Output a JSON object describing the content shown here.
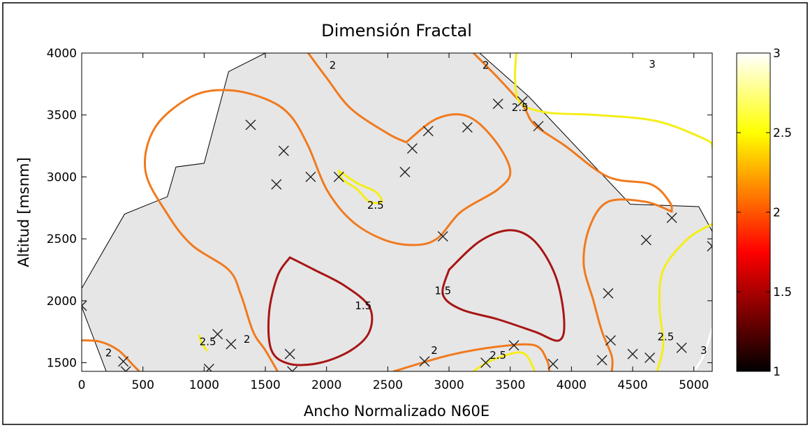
{
  "chart_data": {
    "type": "contour",
    "title": "Dimensión Fractal",
    "xlabel": "Ancho Normalizado N60E",
    "ylabel": "Altitud [msnm]",
    "xlim": [
      0,
      5150
    ],
    "ylim": [
      1430,
      4000
    ],
    "xticks": [
      0,
      500,
      1000,
      1500,
      2000,
      2500,
      3000,
      3500,
      4000,
      4500,
      5000
    ],
    "yticks": [
      1500,
      2000,
      2500,
      3000,
      3500,
      4000
    ],
    "colorbar": {
      "min": 1,
      "max": 3,
      "ticks": [
        1,
        1.5,
        2,
        2.5,
        3
      ],
      "colormap": "hot",
      "position": "right"
    },
    "contour_levels": [
      1.5,
      2,
      2.5,
      3
    ],
    "level_colors": {
      "1.5": "#a81515",
      "2": "#f07a1e",
      "2.5": "#f5ee18",
      "3": "#ffffff"
    },
    "domain_fill": "#e6e6e6",
    "domain_boundary": [
      [
        0,
        2100
      ],
      [
        350,
        2700
      ],
      [
        700,
        2840
      ],
      [
        770,
        3080
      ],
      [
        1000,
        3110
      ],
      [
        1200,
        3850
      ],
      [
        1500,
        4000
      ],
      [
        3250,
        4000
      ],
      [
        3650,
        3650
      ],
      [
        4480,
        2780
      ],
      [
        5040,
        2760
      ],
      [
        5150,
        2560
      ],
      [
        5150,
        1430
      ],
      [
        200,
        1430
      ],
      [
        0,
        1950
      ]
    ],
    "contour_labels": [
      {
        "text": "2",
        "x": 2050,
        "y": 3900
      },
      {
        "text": "2",
        "x": 3300,
        "y": 3900
      },
      {
        "text": "3",
        "x": 4660,
        "y": 3910
      },
      {
        "text": "2.5",
        "x": 3580,
        "y": 3560
      },
      {
        "text": "2.5",
        "x": 2400,
        "y": 2770
      },
      {
        "text": "1.5",
        "x": 2300,
        "y": 1960
      },
      {
        "text": "1.5",
        "x": 2950,
        "y": 2080
      },
      {
        "text": "2",
        "x": 1350,
        "y": 1690
      },
      {
        "text": "2.5",
        "x": 1030,
        "y": 1670
      },
      {
        "text": "2",
        "x": 220,
        "y": 1580
      },
      {
        "text": "2",
        "x": 2880,
        "y": 1600
      },
      {
        "text": "2.5",
        "x": 3400,
        "y": 1560
      },
      {
        "text": "2.5",
        "x": 4770,
        "y": 1710
      },
      {
        "text": "3",
        "x": 5080,
        "y": 1600
      }
    ],
    "contours": [
      {
        "level": 2,
        "points": [
          [
            1850,
            4000
          ],
          [
            2000,
            3800
          ],
          [
            2200,
            3550
          ],
          [
            2500,
            3350
          ],
          [
            2650,
            3280
          ]
        ]
      },
      {
        "level": 2,
        "points": [
          [
            3200,
            4000
          ],
          [
            3400,
            3800
          ],
          [
            3600,
            3580
          ],
          [
            3700,
            3420
          ],
          [
            3950,
            3250
          ],
          [
            4300,
            3000
          ],
          [
            4650,
            2940
          ],
          [
            4800,
            2800
          ],
          [
            4820,
            2720
          ]
        ]
      },
      {
        "level": 2,
        "points": [
          [
            4820,
            2720
          ],
          [
            4600,
            2800
          ],
          [
            4300,
            2800
          ],
          [
            4150,
            2600
          ],
          [
            4100,
            2300
          ],
          [
            4180,
            2000
          ],
          [
            4250,
            1750
          ],
          [
            4330,
            1550
          ],
          [
            4330,
            1430
          ]
        ]
      },
      {
        "level": 2,
        "points": [
          [
            2650,
            3280
          ],
          [
            2900,
            3470
          ],
          [
            3150,
            3490
          ],
          [
            3370,
            3300
          ],
          [
            3500,
            3050
          ],
          [
            3400,
            2900
          ],
          [
            3100,
            2720
          ],
          [
            2900,
            2500
          ],
          [
            2700,
            2450
          ],
          [
            2450,
            2500
          ],
          [
            2200,
            2650
          ],
          [
            2000,
            2900
          ],
          [
            1850,
            3250
          ],
          [
            1700,
            3500
          ],
          [
            1500,
            3630
          ],
          [
            1200,
            3700
          ],
          [
            900,
            3650
          ],
          [
            600,
            3400
          ],
          [
            520,
            3050
          ],
          [
            700,
            2700
          ],
          [
            900,
            2450
          ],
          [
            1200,
            2250
          ],
          [
            1300,
            2050
          ],
          [
            1400,
            1750
          ],
          [
            1500,
            1600
          ],
          [
            1600,
            1430
          ]
        ]
      },
      {
        "level": 2,
        "points": [
          [
            0,
            1680
          ],
          [
            150,
            1670
          ],
          [
            300,
            1600
          ],
          [
            420,
            1480
          ],
          [
            470,
            1430
          ]
        ]
      },
      {
        "level": 2,
        "points": [
          [
            2550,
            1430
          ],
          [
            3000,
            1560
          ],
          [
            3400,
            1630
          ],
          [
            3700,
            1640
          ],
          [
            3800,
            1520
          ],
          [
            3820,
            1430
          ]
        ]
      },
      {
        "level": 1.5,
        "points": [
          [
            1700,
            2350
          ],
          [
            1900,
            2250
          ],
          [
            2150,
            2120
          ],
          [
            2350,
            1950
          ],
          [
            2350,
            1750
          ],
          [
            2200,
            1600
          ],
          [
            1950,
            1500
          ],
          [
            1700,
            1490
          ],
          [
            1550,
            1600
          ],
          [
            1530,
            1900
          ],
          [
            1600,
            2200
          ],
          [
            1700,
            2350
          ]
        ]
      },
      {
        "level": 1.5,
        "points": [
          [
            3000,
            2250
          ],
          [
            3250,
            2480
          ],
          [
            3500,
            2570
          ],
          [
            3700,
            2480
          ],
          [
            3870,
            2200
          ],
          [
            3940,
            1850
          ],
          [
            3900,
            1680
          ],
          [
            3700,
            1750
          ],
          [
            3400,
            1850
          ],
          [
            3100,
            1930
          ],
          [
            2950,
            2050
          ],
          [
            3000,
            2250
          ]
        ]
      },
      {
        "level": 2.5,
        "points": [
          [
            2100,
            3050
          ],
          [
            2250,
            2950
          ],
          [
            2400,
            2880
          ],
          [
            2450,
            2800
          ],
          [
            2350,
            2800
          ],
          [
            2250,
            2900
          ],
          [
            2130,
            2980
          ],
          [
            2100,
            3050
          ]
        ]
      },
      {
        "level": 2.5,
        "points": [
          [
            3550,
            4000
          ],
          [
            3540,
            3800
          ],
          [
            3580,
            3600
          ],
          [
            3800,
            3520
          ],
          [
            4200,
            3500
          ],
          [
            4700,
            3450
          ],
          [
            5100,
            3300
          ],
          [
            5150,
            3240
          ]
        ]
      },
      {
        "level": 2.5,
        "points": [
          [
            5150,
            2620
          ],
          [
            4950,
            2500
          ],
          [
            4750,
            2250
          ],
          [
            4720,
            1950
          ],
          [
            4750,
            1650
          ],
          [
            4700,
            1430
          ]
        ]
      },
      {
        "level": 2.5,
        "points": [
          [
            960,
            1720
          ],
          [
            980,
            1660
          ],
          [
            1020,
            1600
          ]
        ]
      },
      {
        "level": 2.5,
        "points": [
          [
            3200,
            1430
          ],
          [
            3350,
            1520
          ],
          [
            3600,
            1580
          ],
          [
            3700,
            1430
          ]
        ]
      },
      {
        "level": 3,
        "points": [
          [
            5000,
            1430
          ],
          [
            5080,
            1560
          ],
          [
            5150,
            1780
          ]
        ]
      }
    ],
    "sample_points": [
      [
        0,
        1960
      ],
      [
        340,
        1510
      ],
      [
        360,
        1430
      ],
      [
        1040,
        1450
      ],
      [
        1110,
        1730
      ],
      [
        1220,
        1650
      ],
      [
        1380,
        3420
      ],
      [
        1590,
        2940
      ],
      [
        1650,
        3210
      ],
      [
        1700,
        1570
      ],
      [
        1720,
        1430
      ],
      [
        1870,
        3000
      ],
      [
        2100,
        3000
      ],
      [
        2640,
        3040
      ],
      [
        2700,
        3230
      ],
      [
        2800,
        1510
      ],
      [
        2830,
        3370
      ],
      [
        2950,
        2520
      ],
      [
        3150,
        3400
      ],
      [
        3300,
        1500
      ],
      [
        3400,
        3590
      ],
      [
        3530,
        1640
      ],
      [
        3600,
        3610
      ],
      [
        3730,
        3410
      ],
      [
        3850,
        1490
      ],
      [
        4250,
        1520
      ],
      [
        4300,
        2060
      ],
      [
        4320,
        1680
      ],
      [
        4500,
        1570
      ],
      [
        4610,
        2490
      ],
      [
        4640,
        1540
      ],
      [
        4820,
        2670
      ],
      [
        4900,
        1620
      ],
      [
        5150,
        2440
      ]
    ]
  }
}
